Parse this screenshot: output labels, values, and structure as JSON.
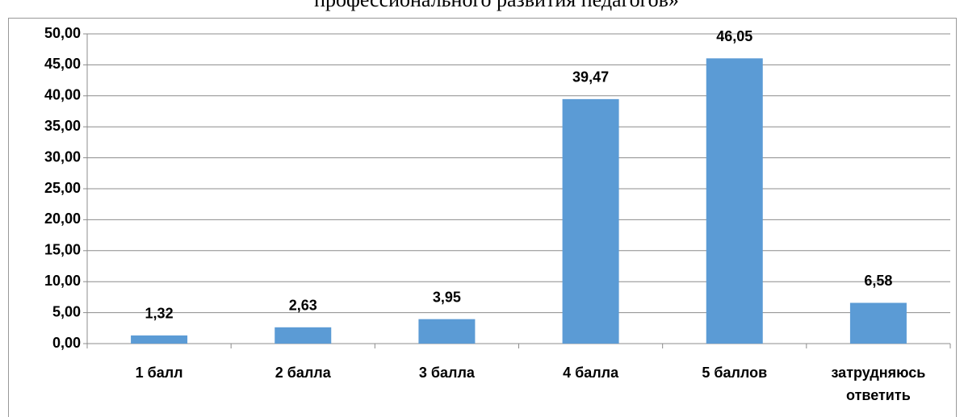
{
  "chart_data": {
    "type": "bar",
    "title": "профессионального развития педагогов»",
    "categories": [
      "1 балл",
      "2 балла",
      "3 балла",
      "4 балла",
      "5 баллов",
      "затрудняюсь ответить"
    ],
    "values": [
      1.32,
      2.63,
      3.95,
      39.47,
      46.05,
      6.58
    ],
    "value_labels": [
      "1,32",
      "2,63",
      "3,95",
      "39,47",
      "46,05",
      "6,58"
    ],
    "color": "#5b9bd5",
    "ylim": [
      0,
      50
    ],
    "yticks": [
      {
        "value": 0,
        "label": "0,00"
      },
      {
        "value": 5,
        "label": "5,00"
      },
      {
        "value": 10,
        "label": "10,00"
      },
      {
        "value": 15,
        "label": "15,00"
      },
      {
        "value": 20,
        "label": "20,00"
      },
      {
        "value": 25,
        "label": "25,00"
      },
      {
        "value": 30,
        "label": "30,00"
      },
      {
        "value": 35,
        "label": "35,00"
      },
      {
        "value": 40,
        "label": "40,00"
      },
      {
        "value": 45,
        "label": "45,00"
      },
      {
        "value": 50,
        "label": "50,00"
      }
    ],
    "grid": true
  }
}
